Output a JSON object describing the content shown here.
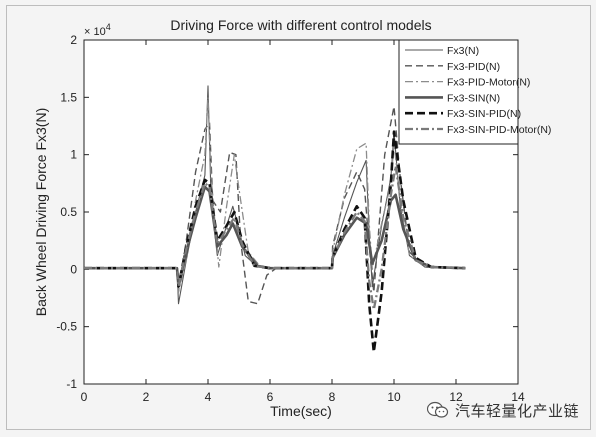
{
  "chart_data": {
    "type": "line",
    "title": "Driving Force with different control models",
    "xlabel": "Time(sec)",
    "ylabel": "Back Wheel Driving Force Fx3(N)",
    "y_multiplier_label": "× 10^4",
    "y_multiplier_base": "× 10",
    "y_multiplier_exp": "4",
    "xlim": [
      0,
      14
    ],
    "ylim": [
      -1,
      2
    ],
    "xticks": [
      "0",
      "2",
      "4",
      "6",
      "8",
      "10",
      "12",
      "14"
    ],
    "yticks": [
      "-1",
      "-0.5",
      "0",
      "0.5",
      "1",
      "1.5",
      "2"
    ],
    "grid": false,
    "legend_position": "top-right",
    "series": [
      {
        "name": "Fx3(N)",
        "style": "solid-thin",
        "color": "#555555",
        "x": [
          0,
          3.0,
          3.05,
          3.3,
          3.6,
          3.9,
          4.0,
          4.1,
          4.3,
          4.6,
          4.8,
          4.95,
          5.2,
          5.6,
          6.0,
          8.0,
          8.02,
          8.4,
          8.8,
          9.1,
          9.2,
          9.3,
          9.6,
          9.9,
          10.0,
          10.2,
          10.5,
          11.0,
          12.3
        ],
        "y": [
          0.01,
          0.01,
          -0.3,
          0.08,
          0.5,
          0.82,
          1.6,
          0.6,
          0.12,
          0.38,
          0.55,
          0.4,
          0.12,
          0.02,
          0.01,
          0.01,
          0.12,
          0.45,
          0.76,
          0.95,
          0.3,
          -0.15,
          0.38,
          0.8,
          1.2,
          0.55,
          0.12,
          0.02,
          0.01
        ]
      },
      {
        "name": "Fx3-PID(N)",
        "style": "dashed",
        "color": "#555555",
        "x": [
          0,
          3.0,
          3.05,
          3.3,
          3.6,
          3.9,
          4.05,
          4.15,
          4.4,
          4.7,
          4.9,
          5.05,
          5.3,
          5.6,
          5.9,
          6.2,
          8.0,
          8.02,
          8.4,
          8.8,
          9.05,
          9.2,
          9.35,
          9.7,
          10.0,
          10.2,
          10.5,
          11.0,
          12.3
        ],
        "y": [
          0.01,
          0.01,
          -0.18,
          0.25,
          0.85,
          1.22,
          1.28,
          0.6,
          0.5,
          1.02,
          1.0,
          0.25,
          -0.28,
          -0.3,
          -0.05,
          0.01,
          0.01,
          0.2,
          0.62,
          0.85,
          0.7,
          0.2,
          -0.2,
          1.0,
          1.42,
          0.8,
          0.15,
          0.02,
          0.01
        ]
      },
      {
        "name": "Fx3-PID-Motor(N)",
        "style": "dashdot",
        "color": "#8c8c8c",
        "x": [
          0,
          3.0,
          3.05,
          3.3,
          3.6,
          3.9,
          4.0,
          4.1,
          4.35,
          4.6,
          4.85,
          5.0,
          5.3,
          5.7,
          6.0,
          8.0,
          8.02,
          8.4,
          8.8,
          9.1,
          9.2,
          9.3,
          9.6,
          9.9,
          10.0,
          10.2,
          10.5,
          11.0,
          12.3
        ],
        "y": [
          0.01,
          0.01,
          -0.2,
          0.1,
          0.6,
          1.0,
          1.5,
          0.8,
          0.02,
          0.55,
          1.0,
          0.7,
          0.15,
          0.02,
          0.01,
          0.01,
          0.15,
          0.65,
          1.05,
          1.1,
          0.4,
          0.0,
          0.4,
          0.75,
          1.1,
          0.6,
          0.12,
          0.02,
          0.01
        ]
      },
      {
        "name": "Fx3-SIN(N)",
        "style": "solid-thick",
        "color": "#555555",
        "x": [
          0,
          3.0,
          3.05,
          3.3,
          3.6,
          3.9,
          4.05,
          4.3,
          4.6,
          4.8,
          5.1,
          5.6,
          6.0,
          8.0,
          8.02,
          8.4,
          8.8,
          9.1,
          9.3,
          9.6,
          9.9,
          10.05,
          10.3,
          10.7,
          11.2,
          12.3
        ],
        "y": [
          0.01,
          0.01,
          -0.15,
          0.15,
          0.45,
          0.72,
          0.68,
          0.2,
          0.3,
          0.4,
          0.2,
          0.03,
          0.01,
          0.01,
          0.1,
          0.3,
          0.45,
          0.4,
          0.05,
          0.25,
          0.6,
          0.65,
          0.35,
          0.08,
          0.02,
          0.01
        ]
      },
      {
        "name": "Fx3-SIN-PID(N)",
        "style": "dashed-thick",
        "color": "#111111",
        "x": [
          0,
          3.0,
          3.05,
          3.3,
          3.6,
          3.9,
          4.05,
          4.3,
          4.6,
          4.85,
          5.1,
          5.5,
          6.0,
          8.0,
          8.02,
          8.4,
          8.8,
          9.05,
          9.2,
          9.35,
          9.6,
          9.9,
          10.0,
          10.3,
          10.7,
          11.2,
          12.3
        ],
        "y": [
          0.01,
          0.01,
          -0.15,
          0.2,
          0.55,
          0.78,
          0.75,
          0.25,
          0.38,
          0.5,
          0.25,
          0.03,
          0.01,
          0.01,
          0.1,
          0.35,
          0.55,
          0.45,
          -0.3,
          -0.72,
          -0.2,
          0.75,
          1.2,
          0.6,
          0.1,
          0.02,
          0.01
        ]
      },
      {
        "name": "Fx3-SIN-PID-Motor(N)",
        "style": "dashdot-thick",
        "color": "#7a7a7a",
        "x": [
          0,
          3.0,
          3.05,
          3.3,
          3.6,
          3.9,
          4.05,
          4.3,
          4.6,
          4.85,
          5.1,
          5.5,
          6.0,
          8.0,
          8.02,
          8.4,
          8.8,
          9.05,
          9.2,
          9.35,
          9.6,
          9.9,
          10.05,
          10.3,
          10.7,
          11.2,
          12.3
        ],
        "y": [
          0.01,
          0.01,
          -0.15,
          0.18,
          0.5,
          0.75,
          0.72,
          0.22,
          0.35,
          0.45,
          0.22,
          0.03,
          0.01,
          0.01,
          0.1,
          0.32,
          0.5,
          0.42,
          -0.1,
          -0.35,
          0.0,
          0.65,
          0.9,
          0.45,
          0.08,
          0.02,
          0.01
        ]
      }
    ]
  },
  "watermark": {
    "text": "汽车轻量化产业链",
    "icon": "wechat-icon"
  }
}
